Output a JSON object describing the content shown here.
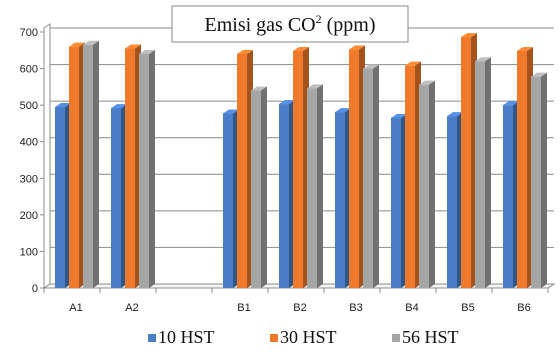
{
  "chart_data": {
    "type": "bar",
    "title": "Emisi gas CO",
    "title_superscript": "2",
    "title_unit": " (ppm)",
    "categories": [
      "A1",
      "A2",
      "",
      "B1",
      "B2",
      "B3",
      "B4",
      "B5",
      "B6"
    ],
    "series": [
      {
        "name": "10 HST",
        "values": [
          495,
          492,
          null,
          477,
          503,
          481,
          465,
          470,
          500
        ],
        "color": "#4a7ec8"
      },
      {
        "name": "30 HST",
        "values": [
          660,
          655,
          null,
          640,
          648,
          652,
          608,
          686,
          648
        ],
        "color": "#f07a2c"
      },
      {
        "name": "56 HST",
        "values": [
          665,
          640,
          null,
          540,
          546,
          600,
          556,
          620,
          578
        ],
        "color": "#a6a6a6"
      }
    ],
    "yticks": [
      0,
      100,
      200,
      300,
      400,
      500,
      600,
      700
    ],
    "ylim": [
      0,
      700
    ],
    "grid": true,
    "legend_position": "bottom"
  }
}
